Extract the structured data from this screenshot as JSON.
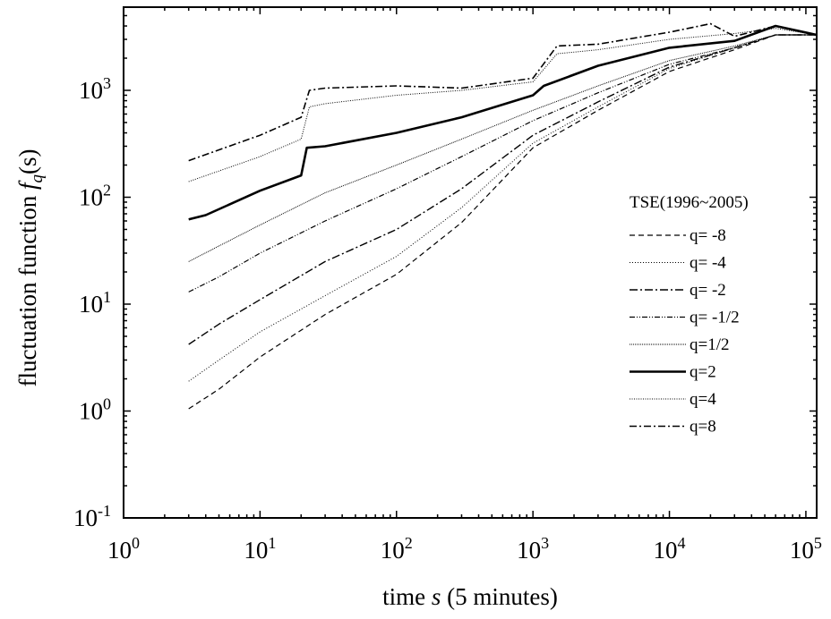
{
  "chart_data": {
    "type": "line",
    "title": "",
    "xlabel": {
      "pre": "time ",
      "var": "s",
      "post": " (5 minutes)"
    },
    "ylabel": {
      "pre": "fluctuation function ",
      "var": "f",
      "sub": "q",
      "post": "(s)"
    },
    "x_scale": "log",
    "y_scale": "log",
    "xlim": [
      1,
      120000
    ],
    "ylim": [
      0.1,
      6000
    ],
    "x_ticks": [
      {
        "value": 1,
        "base": "10",
        "exp": "0"
      },
      {
        "value": 10,
        "base": "10",
        "exp": "1"
      },
      {
        "value": 100,
        "base": "10",
        "exp": "2"
      },
      {
        "value": 1000,
        "base": "10",
        "exp": "3"
      },
      {
        "value": 10000,
        "base": "10",
        "exp": "4"
      },
      {
        "value": 100000,
        "base": "10",
        "exp": "5"
      }
    ],
    "y_ticks": [
      {
        "value": 0.1,
        "base": "10",
        "exp": "-1"
      },
      {
        "value": 1,
        "base": "10",
        "exp": "0"
      },
      {
        "value": 10,
        "base": "10",
        "exp": "1"
      },
      {
        "value": 100,
        "base": "10",
        "exp": "2"
      },
      {
        "value": 1000,
        "base": "10",
        "exp": "3"
      }
    ],
    "grid": false,
    "legend": {
      "title": "TSE(1996~2005)",
      "placement": "right"
    },
    "series": [
      {
        "name": "q= -8",
        "dash": "6,4",
        "stroke_width": 1.2,
        "x": [
          3,
          5,
          10,
          30,
          100,
          300,
          1000,
          3000,
          10000,
          30000,
          60000,
          120000
        ],
        "y": [
          1.05,
          1.6,
          3.2,
          8,
          19,
          58,
          290,
          650,
          1500,
          2400,
          3300,
          3300
        ]
      },
      {
        "name": "q= -4",
        "dash": "1,2",
        "stroke_width": 1.0,
        "x": [
          3,
          5,
          10,
          30,
          100,
          300,
          1000,
          3000,
          10000,
          30000,
          60000,
          120000
        ],
        "y": [
          1.9,
          3,
          5.5,
          12,
          28,
          80,
          320,
          700,
          1600,
          2500,
          3300,
          3300
        ]
      },
      {
        "name": "q= -2",
        "dash": "9,3,2,3",
        "stroke_width": 1.4,
        "x": [
          3,
          5,
          10,
          30,
          100,
          300,
          1000,
          3000,
          10000,
          30000,
          60000,
          120000
        ],
        "y": [
          4.2,
          6.5,
          11,
          25,
          50,
          120,
          380,
          780,
          1650,
          2500,
          3300,
          3300
        ]
      },
      {
        "name": "q= -1/2",
        "dash": "6,2,1,2,1,2",
        "stroke_width": 1.2,
        "x": [
          3,
          5,
          10,
          30,
          100,
          300,
          1000,
          3000,
          10000,
          30000,
          60000,
          120000
        ],
        "y": [
          13,
          18,
          30,
          60,
          120,
          240,
          520,
          950,
          1750,
          2500,
          3300,
          3300
        ]
      },
      {
        "name": "q=1/2",
        "dash": "1,1",
        "stroke_width": 1.0,
        "x": [
          3,
          5,
          10,
          30,
          100,
          300,
          1000,
          3000,
          10000,
          30000,
          60000,
          120000
        ],
        "y": [
          25,
          35,
          55,
          110,
          200,
          350,
          650,
          1100,
          1900,
          2600,
          3300,
          3300
        ]
      },
      {
        "name": "q=2",
        "dash": "",
        "stroke_width": 2.6,
        "x": [
          3,
          4,
          10,
          20,
          22,
          30,
          100,
          300,
          1000,
          1200,
          3000,
          10000,
          30000,
          60000,
          120000
        ],
        "y": [
          62,
          68,
          115,
          160,
          290,
          300,
          400,
          560,
          900,
          1100,
          1700,
          2500,
          2900,
          4000,
          3300
        ]
      },
      {
        "name": "q=4",
        "dash": "1,1.5",
        "stroke_width": 1.0,
        "x": [
          3,
          10,
          20,
          23,
          30,
          100,
          300,
          1000,
          1500,
          3000,
          10000,
          30000,
          60000,
          120000
        ],
        "y": [
          140,
          240,
          350,
          700,
          750,
          900,
          1000,
          1200,
          2200,
          2400,
          3000,
          3400,
          3800,
          3300
        ]
      },
      {
        "name": "q=8",
        "dash": "8,3,2,3",
        "stroke_width": 1.6,
        "x": [
          3,
          10,
          20,
          23,
          30,
          100,
          300,
          1000,
          1500,
          3000,
          10000,
          20000,
          30000,
          60000,
          120000
        ],
        "y": [
          220,
          380,
          560,
          1000,
          1050,
          1100,
          1050,
          1300,
          2600,
          2700,
          3500,
          4200,
          3200,
          4000,
          3300
        ]
      }
    ]
  }
}
